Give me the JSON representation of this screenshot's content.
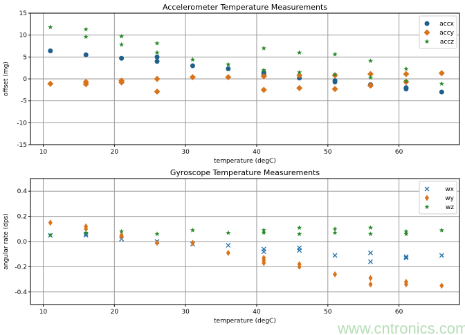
{
  "chart_data": [
    {
      "type": "scatter",
      "title": "Accelerometer Temperature Measurements",
      "xlabel": "temperature (degC)",
      "ylabel": "offset (mg)",
      "xlim": [
        8.2,
        68.5
      ],
      "ylim": [
        -15,
        15
      ],
      "xticks": [
        10,
        20,
        30,
        40,
        50,
        60
      ],
      "yticks": [
        -15,
        -10,
        -5,
        0,
        5,
        10,
        15
      ],
      "grid": true,
      "legend": "top-right",
      "series": [
        {
          "name": "accx",
          "marker": "circle",
          "color": "#1f5f8b",
          "points": [
            [
              11,
              6.4
            ],
            [
              16,
              5.5
            ],
            [
              21,
              4.7
            ],
            [
              26,
              5.0
            ],
            [
              26,
              4.0
            ],
            [
              31,
              3.0
            ],
            [
              36,
              2.3
            ],
            [
              41,
              1.5
            ],
            [
              41,
              1.0
            ],
            [
              46,
              0.2
            ],
            [
              51,
              -0.4
            ],
            [
              51,
              -0.7
            ],
            [
              56,
              -1.5
            ],
            [
              56,
              -1.3
            ],
            [
              61,
              -2.0
            ],
            [
              61,
              -2.3
            ],
            [
              66,
              -3.0
            ]
          ]
        },
        {
          "name": "accy",
          "marker": "diamond",
          "color": "#d9731a",
          "points": [
            [
              11,
              -1.1
            ],
            [
              16,
              -0.7
            ],
            [
              16,
              -1.2
            ],
            [
              21,
              -0.4
            ],
            [
              21,
              -0.8
            ],
            [
              26,
              0
            ],
            [
              26,
              -2.9
            ],
            [
              31,
              0.4
            ],
            [
              36,
              0.4
            ],
            [
              41,
              0.6
            ],
            [
              41,
              -2.5
            ],
            [
              46,
              0.8
            ],
            [
              46,
              -2.1
            ],
            [
              51,
              0.8
            ],
            [
              51,
              -2.3
            ],
            [
              56,
              1.1
            ],
            [
              56,
              -1.5
            ],
            [
              61,
              1.1
            ],
            [
              61,
              -0.7
            ],
            [
              66,
              1.3
            ]
          ]
        },
        {
          "name": "accz",
          "marker": "star",
          "color": "#2a8a2a",
          "points": [
            [
              11,
              11.8
            ],
            [
              16,
              11.3
            ],
            [
              16,
              9.6
            ],
            [
              21,
              9.7
            ],
            [
              21,
              7.8
            ],
            [
              26,
              8.1
            ],
            [
              26,
              6.0
            ],
            [
              31,
              4.4
            ],
            [
              36,
              3.3
            ],
            [
              41,
              7.0
            ],
            [
              41,
              2.0
            ],
            [
              46,
              6.0
            ],
            [
              46,
              1.5
            ],
            [
              51,
              5.6
            ],
            [
              51,
              1.0
            ],
            [
              56,
              4.1
            ],
            [
              56,
              0.3
            ],
            [
              61,
              2.3
            ],
            [
              61,
              -0.5
            ],
            [
              66,
              -1.1
            ]
          ]
        }
      ]
    },
    {
      "type": "scatter",
      "title": "Gyroscope Temperature Measurements",
      "xlabel": "temperature (degC)",
      "ylabel": "angular rate (dps)",
      "xlim": [
        8.2,
        68.5
      ],
      "ylim": [
        -0.5,
        0.5
      ],
      "xticks": [
        10,
        20,
        30,
        40,
        50,
        60
      ],
      "yticks": [
        -0.4,
        -0.2,
        0.0,
        0.2,
        0.4
      ],
      "grid": true,
      "legend": "top-right",
      "series": [
        {
          "name": "wx",
          "marker": "x",
          "color": "#1f6fa8",
          "points": [
            [
              11,
              0.05
            ],
            [
              16,
              0.06
            ],
            [
              16,
              0.05
            ],
            [
              21,
              0.02
            ],
            [
              26,
              0.0
            ],
            [
              31,
              -0.02
            ],
            [
              36,
              -0.03
            ],
            [
              41,
              -0.06
            ],
            [
              41,
              -0.08
            ],
            [
              46,
              -0.05
            ],
            [
              46,
              -0.07
            ],
            [
              51,
              -0.11
            ],
            [
              56,
              -0.09
            ],
            [
              56,
              -0.16
            ],
            [
              61,
              -0.12
            ],
            [
              61,
              -0.13
            ],
            [
              66,
              -0.11
            ]
          ]
        },
        {
          "name": "wy",
          "marker": "thin_diamond",
          "color": "#d9731a",
          "points": [
            [
              11,
              0.15
            ],
            [
              16,
              0.12
            ],
            [
              16,
              0.1
            ],
            [
              21,
              0.05
            ],
            [
              21,
              0.04
            ],
            [
              26,
              -0.01
            ],
            [
              31,
              -0.01
            ],
            [
              36,
              -0.09
            ],
            [
              41,
              -0.13
            ],
            [
              41,
              -0.15
            ],
            [
              41,
              -0.17
            ],
            [
              46,
              -0.18
            ],
            [
              46,
              -0.2
            ],
            [
              51,
              -0.26
            ],
            [
              56,
              -0.29
            ],
            [
              56,
              -0.34
            ],
            [
              61,
              -0.32
            ],
            [
              61,
              -0.34
            ],
            [
              66,
              -0.35
            ]
          ]
        },
        {
          "name": "wz",
          "marker": "star",
          "color": "#2a8a2a",
          "points": [
            [
              11,
              0.05
            ],
            [
              16,
              0.07
            ],
            [
              21,
              0.08
            ],
            [
              26,
              0.06
            ],
            [
              31,
              0.09
            ],
            [
              36,
              0.07
            ],
            [
              41,
              0.09
            ],
            [
              41,
              0.07
            ],
            [
              46,
              0.11
            ],
            [
              46,
              0.06
            ],
            [
              51,
              0.1
            ],
            [
              51,
              0.07
            ],
            [
              56,
              0.11
            ],
            [
              56,
              0.06
            ],
            [
              61,
              0.08
            ],
            [
              61,
              0.06
            ],
            [
              66,
              0.09
            ]
          ]
        }
      ]
    }
  ],
  "watermark": "www.cntronics.com"
}
